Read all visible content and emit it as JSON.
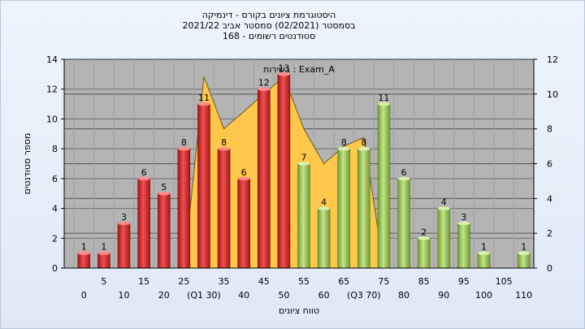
{
  "chart_data": {
    "type": "bar",
    "title_lines": [
      "היסטוגרמת ציונים בקורס - דינמיקה",
      "בסמסטר  (02/2021)  סמסטר אביב 2021/22",
      "סטודנטים רשומים - 168"
    ],
    "annotation": "בשירות : Exam_A",
    "xlabel": "טווח ציונים",
    "ylabel": "מספר סטודנטים",
    "categories": [
      0,
      5,
      10,
      15,
      20,
      25,
      30,
      35,
      40,
      45,
      50,
      55,
      60,
      65,
      70,
      75,
      80,
      85,
      90,
      95,
      100,
      105,
      110
    ],
    "x_tick_labels": [
      "0",
      "5",
      "10",
      "15",
      "20",
      "25",
      "(Q1 30)",
      "35",
      "40",
      "45",
      "50",
      "55",
      "60",
      "65",
      "(Q3 70)",
      "75",
      "80",
      "85",
      "90",
      "95",
      "100",
      "105",
      "110"
    ],
    "values": [
      1,
      1,
      3,
      6,
      5,
      8,
      11,
      8,
      6,
      12,
      13,
      7,
      4,
      8,
      8,
      11,
      6,
      2,
      4,
      3,
      1,
      0,
      1
    ],
    "bar_colors_rule": "red for categories <= 50, green for > 50",
    "colors": {
      "red": "#d42a2a",
      "green": "#98c254",
      "area": "#ffc84a",
      "plot_bg": "#b4b4b4"
    },
    "ylim_left": [
      0,
      14
    ],
    "yticks_left": [
      0,
      2,
      4,
      6,
      8,
      10,
      12,
      14
    ],
    "ylim_right": [
      0,
      12
    ],
    "yticks_right": [
      0,
      2,
      4,
      6,
      8,
      10,
      12
    ],
    "area_series": {
      "axis": "right",
      "x": [
        25,
        30,
        35,
        40,
        45,
        50,
        55,
        60,
        65,
        70,
        75
      ],
      "values": [
        0,
        11,
        8,
        9,
        10,
        11,
        8,
        6,
        7,
        7.5,
        0
      ]
    },
    "grid": true
  }
}
